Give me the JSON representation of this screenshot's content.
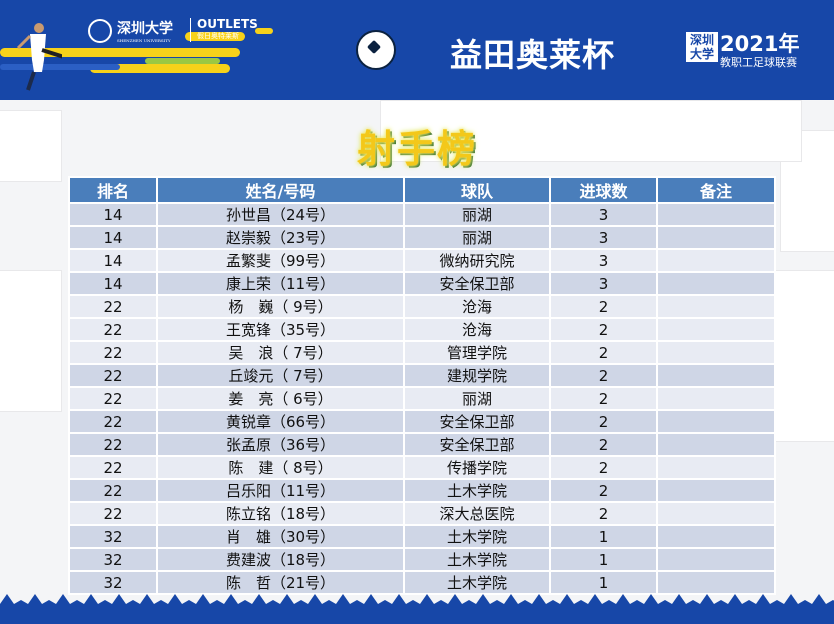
{
  "banner": {
    "university": "深圳大学",
    "university_en": "SHENZHEN UNIVERSITY",
    "sponsor": "OUTLETS",
    "sponsor_prefix": "益田",
    "sponsor_cn": "假日奥特莱斯",
    "cup_title": "益田奥莱杯",
    "szu_badge": "深圳大学",
    "year": "2021年",
    "league": "教职工足球联赛"
  },
  "title": "射手榜",
  "table": {
    "headers": [
      "排名",
      "姓名/号码",
      "球队",
      "进球数",
      "备注"
    ],
    "rows": [
      {
        "rank": "14",
        "name": "孙世昌（24号）",
        "team": "丽湖",
        "goals": "3",
        "note": ""
      },
      {
        "rank": "14",
        "name": "赵崇毅（23号）",
        "team": "丽湖",
        "goals": "3",
        "note": ""
      },
      {
        "rank": "14",
        "name": "孟繁斐（99号）",
        "team": "微纳研究院",
        "goals": "3",
        "note": ""
      },
      {
        "rank": "14",
        "name": "康上荣（11号）",
        "team": "安全保卫部",
        "goals": "3",
        "note": ""
      },
      {
        "rank": "22",
        "name": "杨　巍（ 9号）",
        "team": "沧海",
        "goals": "2",
        "note": ""
      },
      {
        "rank": "22",
        "name": "王宽锋（35号）",
        "team": "沧海",
        "goals": "2",
        "note": ""
      },
      {
        "rank": "22",
        "name": "吴　浪（ 7号）",
        "team": "管理学院",
        "goals": "2",
        "note": ""
      },
      {
        "rank": "22",
        "name": "丘竣元（ 7号）",
        "team": "建规学院",
        "goals": "2",
        "note": ""
      },
      {
        "rank": "22",
        "name": "姜　亮（ 6号）",
        "team": "丽湖",
        "goals": "2",
        "note": ""
      },
      {
        "rank": "22",
        "name": "黄锐章（66号）",
        "team": "安全保卫部",
        "goals": "2",
        "note": ""
      },
      {
        "rank": "22",
        "name": "张孟原（36号）",
        "team": "安全保卫部",
        "goals": "2",
        "note": ""
      },
      {
        "rank": "22",
        "name": "陈　建（ 8号）",
        "team": "传播学院",
        "goals": "2",
        "note": ""
      },
      {
        "rank": "22",
        "name": "吕乐阳（11号）",
        "team": "土木学院",
        "goals": "2",
        "note": ""
      },
      {
        "rank": "22",
        "name": "陈立铭（18号）",
        "team": "深大总医院",
        "goals": "2",
        "note": ""
      },
      {
        "rank": "32",
        "name": "肖　雄（30号）",
        "team": "土木学院",
        "goals": "1",
        "note": ""
      },
      {
        "rank": "32",
        "name": "费建波（18号）",
        "team": "土木学院",
        "goals": "1",
        "note": ""
      },
      {
        "rank": "32",
        "name": "陈　哲（21号）",
        "team": "土木学院",
        "goals": "1",
        "note": ""
      }
    ]
  },
  "colors": {
    "banner": "#1747a8",
    "header": "#4a7ebb",
    "row_dark": "#cfd6e6",
    "row_light": "#e8ebf3",
    "title": "#f3c81a"
  }
}
